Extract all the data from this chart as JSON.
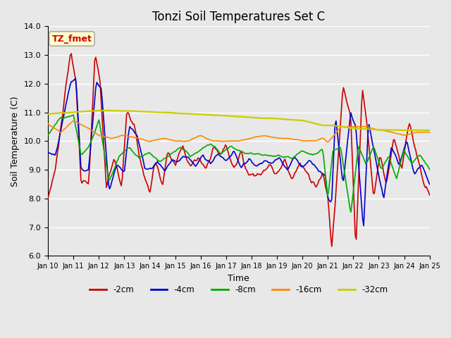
{
  "title": "Tonzi Soil Temperatures Set C",
  "xlabel": "Time",
  "ylabel": "Soil Temperature (C)",
  "ylim": [
    6.0,
    14.0
  ],
  "yticks": [
    6.0,
    7.0,
    8.0,
    9.0,
    10.0,
    11.0,
    12.0,
    13.0,
    14.0
  ],
  "xtick_labels": [
    "Jan 10",
    "Jan 11",
    "Jan 12",
    "Jan 13",
    "Jan 14",
    "Jan 15",
    "Jan 16",
    "Jan 17",
    "Jan 18",
    "Jan 19",
    "Jan 20",
    "Jan 21",
    "Jan 22",
    "Jan 23",
    "Jan 24",
    "Jan 25"
  ],
  "series_colors": [
    "#cc0000",
    "#0000cc",
    "#00aa00",
    "#ff8800",
    "#cccc00"
  ],
  "series_labels": [
    "-2cm",
    "-4cm",
    "-8cm",
    "-16cm",
    "-32cm"
  ],
  "annotation_text": "TZ_fmet",
  "annotation_bg": "#ffffcc",
  "annotation_border": "#aaaaaa",
  "annotation_text_color": "#cc0000",
  "plot_bg_color": "#e8e8e8",
  "fig_bg_color": "#e8e8e8",
  "grid_color": "#ffffff",
  "title_fontsize": 12,
  "label_fontsize": 9,
  "tick_fontsize": 8
}
